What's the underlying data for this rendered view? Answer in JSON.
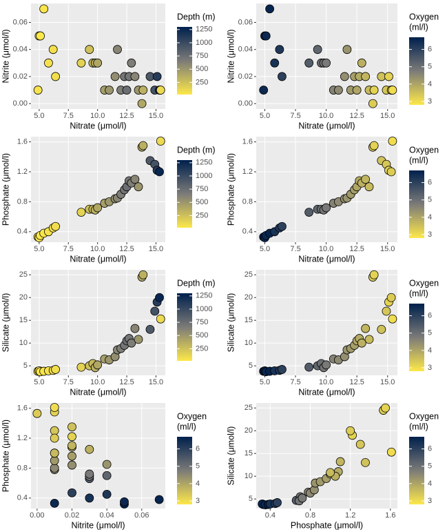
{
  "chart_data": [
    {
      "type": "scatter",
      "x_label": "Nitrate (μmol/l)",
      "y_label": "Nitrite (μmol/l)",
      "x": [
        4.9,
        5.0,
        5.1,
        5.4,
        5.8,
        6.2,
        6.4,
        8.6,
        9.3,
        9.6,
        9.8,
        10.0,
        10.6,
        11.0,
        11.5,
        11.7,
        12.0,
        12.3,
        12.5,
        12.7,
        12.9,
        13.2,
        13.5,
        13.8,
        13.9,
        14.5,
        14.9,
        15.1,
        15.3,
        15.4
      ],
      "y": [
        0.01,
        0.05,
        0.05,
        0.07,
        0.03,
        0.04,
        0.02,
        0.03,
        0.04,
        0.03,
        0.03,
        0.03,
        0.01,
        0.01,
        0.02,
        0.04,
        0.01,
        0.02,
        0.01,
        0.02,
        0.03,
        0.02,
        0.01,
        0.0,
        0.01,
        0.02,
        0.01,
        0.02,
        0.01,
        0.01
      ],
      "color_values": [
        50,
        30,
        20,
        40,
        60,
        70,
        80,
        150,
        250,
        300,
        350,
        400,
        450,
        500,
        550,
        600,
        650,
        700,
        750,
        700,
        650,
        600,
        500,
        400,
        350,
        900,
        950,
        1100,
        1250,
        100
      ],
      "xlim": [
        4.3,
        15.8
      ],
      "xticks": [
        {
          "value": 5,
          "label": "5.0"
        },
        {
          "value": 7.5,
          "label": "7.5"
        },
        {
          "value": 10,
          "label": "10.0"
        },
        {
          "value": 12.5,
          "label": "12.5"
        },
        {
          "value": 15,
          "label": "15.0"
        }
      ],
      "ylim": [
        -0.004,
        0.074
      ],
      "yticks": [
        {
          "value": 0,
          "label": "0.00"
        },
        {
          "value": 0.02,
          "label": "0.02"
        },
        {
          "value": 0.04,
          "label": "0.04"
        },
        {
          "value": 0.06,
          "label": "0.06"
        }
      ],
      "legend_title": [
        "Depth (m)"
      ],
      "clim": [
        20,
        1300
      ],
      "cticks": [
        250,
        500,
        750,
        1000,
        1250
      ],
      "colormap": [
        "#fde84a",
        "#7c7b78",
        "#00204d"
      ],
      "grid": true
    },
    {
      "type": "scatter",
      "x_label": "Nitrate (μmol/l)",
      "y_label": "Nitrite (μmol/l)",
      "x": [
        4.9,
        5.0,
        5.1,
        5.4,
        5.8,
        6.2,
        6.4,
        8.6,
        9.3,
        9.6,
        9.8,
        10.0,
        10.6,
        11.0,
        11.5,
        11.7,
        12.0,
        12.3,
        12.5,
        12.7,
        12.9,
        13.2,
        13.5,
        13.8,
        13.9,
        14.5,
        14.9,
        15.1,
        15.3,
        15.4
      ],
      "y": [
        0.01,
        0.05,
        0.05,
        0.07,
        0.03,
        0.04,
        0.02,
        0.03,
        0.04,
        0.03,
        0.03,
        0.03,
        0.01,
        0.01,
        0.02,
        0.04,
        0.01,
        0.02,
        0.01,
        0.02,
        0.03,
        0.02,
        0.01,
        0.0,
        0.01,
        0.02,
        0.01,
        0.02,
        0.01,
        0.01
      ],
      "color_values": [
        6.5,
        6.6,
        6.5,
        6.6,
        6.3,
        6.2,
        6.0,
        5.4,
        5.2,
        5.0,
        4.9,
        4.8,
        4.6,
        4.5,
        4.4,
        4.3,
        4.2,
        4.1,
        4.0,
        3.9,
        3.8,
        3.7,
        3.6,
        3.3,
        3.2,
        3.5,
        3.4,
        3.2,
        3.3,
        3.0
      ],
      "xlim": [
        4.3,
        15.8
      ],
      "xticks": [
        {
          "value": 5,
          "label": "5.0"
        },
        {
          "value": 7.5,
          "label": "7.5"
        },
        {
          "value": 10,
          "label": "10.0"
        },
        {
          "value": 12.5,
          "label": "12.5"
        },
        {
          "value": 15,
          "label": "15.0"
        }
      ],
      "ylim": [
        -0.004,
        0.074
      ],
      "yticks": [
        {
          "value": 0,
          "label": "0.00"
        },
        {
          "value": 0.02,
          "label": "0.02"
        },
        {
          "value": 0.04,
          "label": "0.04"
        },
        {
          "value": 0.06,
          "label": "0.06"
        }
      ],
      "legend_title": [
        "Oxygen",
        "(ml/l)"
      ],
      "clim": [
        2.8,
        6.7
      ],
      "cticks": [
        3,
        4,
        5,
        6
      ],
      "colormap": [
        "#fde84a",
        "#7c7b78",
        "#00204d"
      ],
      "grid": true
    },
    {
      "type": "scatter",
      "x_label": "Nitrate (μmol/l)",
      "y_label": "Phosphate (μmol/l)",
      "x": [
        4.9,
        5.0,
        5.1,
        5.4,
        5.8,
        6.2,
        6.4,
        8.6,
        9.3,
        9.6,
        9.8,
        10.0,
        10.6,
        11.0,
        11.5,
        11.7,
        12.0,
        12.3,
        12.5,
        12.7,
        12.9,
        13.2,
        13.5,
        13.8,
        13.9,
        14.5,
        14.9,
        15.1,
        15.3,
        15.4
      ],
      "y": [
        0.33,
        0.32,
        0.35,
        0.38,
        0.4,
        0.45,
        0.47,
        0.66,
        0.7,
        0.7,
        0.69,
        0.72,
        0.78,
        0.8,
        0.84,
        0.85,
        0.9,
        0.96,
        1.0,
        1.08,
        1.05,
        1.1,
        1.0,
        1.53,
        1.55,
        1.35,
        1.3,
        1.22,
        1.2,
        1.61
      ],
      "color_values": [
        50,
        30,
        20,
        40,
        60,
        70,
        80,
        150,
        250,
        300,
        350,
        400,
        450,
        500,
        550,
        600,
        650,
        700,
        750,
        700,
        650,
        600,
        500,
        400,
        350,
        900,
        950,
        1100,
        1250,
        100
      ],
      "xlim": [
        4.3,
        15.8
      ],
      "xticks": [
        {
          "value": 5,
          "label": "5.0"
        },
        {
          "value": 7.5,
          "label": "7.5"
        },
        {
          "value": 10,
          "label": "10.0"
        },
        {
          "value": 12.5,
          "label": "12.5"
        },
        {
          "value": 15,
          "label": "15.0"
        }
      ],
      "ylim": [
        0.26,
        1.67
      ],
      "yticks": [
        0.4,
        0.8,
        1.2,
        1.6
      ],
      "legend_title": [
        "Depth (m)"
      ],
      "clim": [
        20,
        1300
      ],
      "cticks": [
        250,
        500,
        750,
        1000,
        1250
      ],
      "colormap": [
        "#fde84a",
        "#7c7b78",
        "#00204d"
      ],
      "grid": true
    },
    {
      "type": "scatter",
      "x_label": "Nitrate (μmol/l)",
      "y_label": "Phosphate (μmol/l)",
      "x": [
        4.9,
        5.0,
        5.1,
        5.4,
        5.8,
        6.2,
        6.4,
        8.6,
        9.3,
        9.6,
        9.8,
        10.0,
        10.6,
        11.0,
        11.5,
        11.7,
        12.0,
        12.3,
        12.5,
        12.7,
        12.9,
        13.2,
        13.5,
        13.8,
        13.9,
        14.5,
        14.9,
        15.1,
        15.3,
        15.4
      ],
      "y": [
        0.33,
        0.32,
        0.35,
        0.38,
        0.4,
        0.45,
        0.47,
        0.66,
        0.7,
        0.7,
        0.69,
        0.72,
        0.78,
        0.8,
        0.84,
        0.85,
        0.9,
        0.96,
        1.0,
        1.08,
        1.05,
        1.1,
        1.0,
        1.53,
        1.55,
        1.35,
        1.3,
        1.22,
        1.2,
        1.61
      ],
      "color_values": [
        6.5,
        6.6,
        6.5,
        6.6,
        6.3,
        6.2,
        6.0,
        5.4,
        5.2,
        5.0,
        4.9,
        4.8,
        4.6,
        4.5,
        4.4,
        4.3,
        4.2,
        4.1,
        4.0,
        3.9,
        3.8,
        3.7,
        3.6,
        3.3,
        3.2,
        3.5,
        3.4,
        3.2,
        3.3,
        3.0
      ],
      "xlim": [
        4.3,
        15.8
      ],
      "xticks": [
        {
          "value": 5,
          "label": "5.0"
        },
        {
          "value": 7.5,
          "label": "7.5"
        },
        {
          "value": 10,
          "label": "10.0"
        },
        {
          "value": 12.5,
          "label": "12.5"
        },
        {
          "value": 15,
          "label": "15.0"
        }
      ],
      "ylim": [
        0.26,
        1.67
      ],
      "yticks": [
        0.4,
        0.8,
        1.2,
        1.6
      ],
      "legend_title": [
        "Oxygen",
        "(ml/l)"
      ],
      "clim": [
        2.8,
        6.7
      ],
      "cticks": [
        3,
        4,
        5,
        6
      ],
      "colormap": [
        "#fde84a",
        "#7c7b78",
        "#00204d"
      ],
      "grid": true
    },
    {
      "type": "scatter",
      "x_label": "Nitrate (μmol/l)",
      "y_label": "Silicate (μmol/l)",
      "x": [
        4.9,
        5.0,
        5.1,
        5.4,
        5.8,
        6.2,
        6.4,
        8.6,
        9.3,
        9.6,
        9.8,
        10.0,
        10.6,
        11.0,
        11.5,
        11.7,
        12.0,
        12.3,
        12.5,
        12.7,
        12.9,
        13.2,
        13.5,
        13.8,
        13.9,
        14.5,
        14.9,
        15.1,
        15.3,
        15.4
      ],
      "y": [
        3.8,
        3.9,
        3.7,
        3.8,
        3.9,
        4.0,
        4.2,
        4.7,
        5.0,
        5.5,
        4.6,
        5.2,
        6.5,
        6.3,
        7.0,
        8.5,
        8.8,
        9.5,
        10.5,
        11.0,
        10.0,
        13.2,
        10.8,
        24.5,
        25.0,
        13.0,
        17.0,
        19.0,
        20.0,
        15.3
      ],
      "color_values": [
        50,
        30,
        20,
        40,
        60,
        70,
        80,
        150,
        250,
        300,
        350,
        400,
        450,
        500,
        550,
        600,
        650,
        700,
        750,
        700,
        650,
        600,
        500,
        400,
        350,
        900,
        950,
        1100,
        1250,
        100
      ],
      "xlim": [
        4.3,
        15.8
      ],
      "xticks": [
        {
          "value": 5,
          "label": "5.0"
        },
        {
          "value": 7.5,
          "label": "7.5"
        },
        {
          "value": 10,
          "label": "10.0"
        },
        {
          "value": 12.5,
          "label": "12.5"
        },
        {
          "value": 15,
          "label": "15.0"
        }
      ],
      "ylim": [
        2.9,
        26.1
      ],
      "yticks": [
        5,
        10,
        15,
        20,
        25
      ],
      "legend_title": [
        "Depth (m)"
      ],
      "clim": [
        20,
        1300
      ],
      "cticks": [
        250,
        500,
        750,
        1000,
        1250
      ],
      "colormap": [
        "#fde84a",
        "#7c7b78",
        "#00204d"
      ],
      "grid": true
    },
    {
      "type": "scatter",
      "x_label": "Nitrate (μmol/l)",
      "y_label": "Silicate (μmol/l)",
      "x": [
        4.9,
        5.0,
        5.1,
        5.4,
        5.8,
        6.2,
        6.4,
        8.6,
        9.3,
        9.6,
        9.8,
        10.0,
        10.6,
        11.0,
        11.5,
        11.7,
        12.0,
        12.3,
        12.5,
        12.7,
        12.9,
        13.2,
        13.5,
        13.8,
        13.9,
        14.5,
        14.9,
        15.1,
        15.3,
        15.4
      ],
      "y": [
        3.8,
        3.9,
        3.7,
        3.8,
        3.9,
        4.0,
        4.2,
        4.7,
        5.0,
        5.5,
        4.6,
        5.2,
        6.5,
        6.3,
        7.0,
        8.5,
        8.8,
        9.5,
        10.5,
        11.0,
        10.0,
        13.2,
        10.8,
        24.5,
        25.0,
        13.0,
        17.0,
        19.0,
        20.0,
        15.3
      ],
      "color_values": [
        6.5,
        6.6,
        6.5,
        6.6,
        6.3,
        6.2,
        6.0,
        5.4,
        5.2,
        5.0,
        4.9,
        4.8,
        4.6,
        4.5,
        4.4,
        4.3,
        4.2,
        4.1,
        4.0,
        3.9,
        3.8,
        3.7,
        3.6,
        3.3,
        3.2,
        3.5,
        3.4,
        3.2,
        3.3,
        3.0
      ],
      "xlim": [
        4.3,
        15.8
      ],
      "xticks": [
        {
          "value": 5,
          "label": "5.0"
        },
        {
          "value": 7.5,
          "label": "7.5"
        },
        {
          "value": 10,
          "label": "10.0"
        },
        {
          "value": 12.5,
          "label": "12.5"
        },
        {
          "value": 15,
          "label": "15.0"
        }
      ],
      "ylim": [
        2.9,
        26.1
      ],
      "yticks": [
        5,
        10,
        15,
        20,
        25
      ],
      "legend_title": [
        "Oxygen",
        "(ml/l)"
      ],
      "clim": [
        2.8,
        6.7
      ],
      "cticks": [
        3,
        4,
        5,
        6
      ],
      "colormap": [
        "#fde84a",
        "#7c7b78",
        "#00204d"
      ],
      "grid": true
    },
    {
      "type": "scatter",
      "x_label": "Nitrite (μmol/l)",
      "y_label": "Phosphate (μmol/l)",
      "x": [
        0.01,
        0.05,
        0.05,
        0.07,
        0.03,
        0.04,
        0.02,
        0.03,
        0.04,
        0.03,
        0.03,
        0.03,
        0.01,
        0.01,
        0.02,
        0.04,
        0.01,
        0.02,
        0.01,
        0.02,
        0.03,
        0.02,
        0.01,
        0.0,
        0.01,
        0.02,
        0.01,
        0.02,
        0.01,
        0.01
      ],
      "y": [
        0.33,
        0.32,
        0.35,
        0.38,
        0.4,
        0.45,
        0.47,
        0.66,
        0.7,
        0.7,
        0.69,
        0.72,
        0.78,
        0.8,
        0.84,
        0.85,
        0.9,
        0.96,
        1.0,
        1.08,
        1.05,
        1.1,
        1.0,
        1.53,
        1.55,
        1.35,
        1.3,
        1.22,
        1.2,
        1.61
      ],
      "color_values": [
        6.5,
        6.6,
        6.5,
        6.6,
        6.3,
        6.2,
        6.0,
        5.4,
        5.2,
        5.0,
        4.9,
        4.8,
        4.6,
        4.5,
        4.4,
        4.3,
        4.2,
        4.1,
        4.0,
        3.9,
        3.8,
        3.7,
        3.6,
        3.3,
        3.2,
        3.5,
        3.4,
        3.2,
        3.3,
        3.0
      ],
      "xlim": [
        -0.0035,
        0.0735
      ],
      "xticks": [
        {
          "value": 0,
          "label": "0.00"
        },
        {
          "value": 0.02,
          "label": "0.02"
        },
        {
          "value": 0.04,
          "label": "0.04"
        },
        {
          "value": 0.06,
          "label": "0.06"
        }
      ],
      "ylim": [
        0.26,
        1.67
      ],
      "yticks": [
        0.4,
        0.8,
        1.2,
        1.6
      ],
      "legend_title": [
        "Oxygen",
        "(ml/l)"
      ],
      "clim": [
        2.8,
        6.7
      ],
      "cticks": [
        3,
        4,
        5,
        6
      ],
      "colormap": [
        "#fde84a",
        "#7c7b78",
        "#00204d"
      ],
      "grid": true
    },
    {
      "type": "scatter",
      "x_label": "Phosphate (μmol/l)",
      "y_label": "Silicate (μmol/l)",
      "x": [
        0.33,
        0.32,
        0.35,
        0.38,
        0.4,
        0.45,
        0.47,
        0.66,
        0.7,
        0.7,
        0.69,
        0.72,
        0.78,
        0.8,
        0.84,
        0.85,
        0.9,
        0.96,
        1.0,
        1.08,
        1.05,
        1.1,
        1.0,
        1.53,
        1.55,
        1.35,
        1.3,
        1.22,
        1.2,
        1.61
      ],
      "y": [
        3.8,
        3.9,
        3.7,
        3.8,
        3.9,
        4.0,
        4.2,
        4.7,
        5.0,
        5.5,
        4.6,
        5.2,
        6.5,
        6.3,
        7.0,
        8.5,
        8.8,
        9.5,
        10.5,
        11.0,
        10.0,
        13.2,
        10.8,
        24.5,
        25.0,
        13.0,
        17.0,
        19.0,
        20.0,
        15.3
      ],
      "color_values": [
        6.5,
        6.6,
        6.5,
        6.6,
        6.3,
        6.2,
        6.0,
        5.4,
        5.2,
        5.0,
        4.9,
        4.8,
        4.6,
        4.5,
        4.4,
        4.3,
        4.2,
        4.1,
        4.0,
        3.9,
        3.8,
        3.7,
        3.6,
        3.3,
        3.2,
        3.5,
        3.4,
        3.2,
        3.3,
        3.0
      ],
      "xlim": [
        0.26,
        1.67
      ],
      "xticks": [
        0.4,
        0.8,
        1.2,
        1.6
      ],
      "ylim": [
        2.9,
        26.1
      ],
      "yticks": [
        5,
        10,
        15,
        20,
        25
      ],
      "legend_title": [
        "Oxygen",
        "(ml/l)"
      ],
      "clim": [
        2.8,
        6.7
      ],
      "cticks": [
        3,
        4,
        5,
        6
      ],
      "colormap": [
        "#fde84a",
        "#7c7b78",
        "#00204d"
      ],
      "grid": true
    }
  ]
}
